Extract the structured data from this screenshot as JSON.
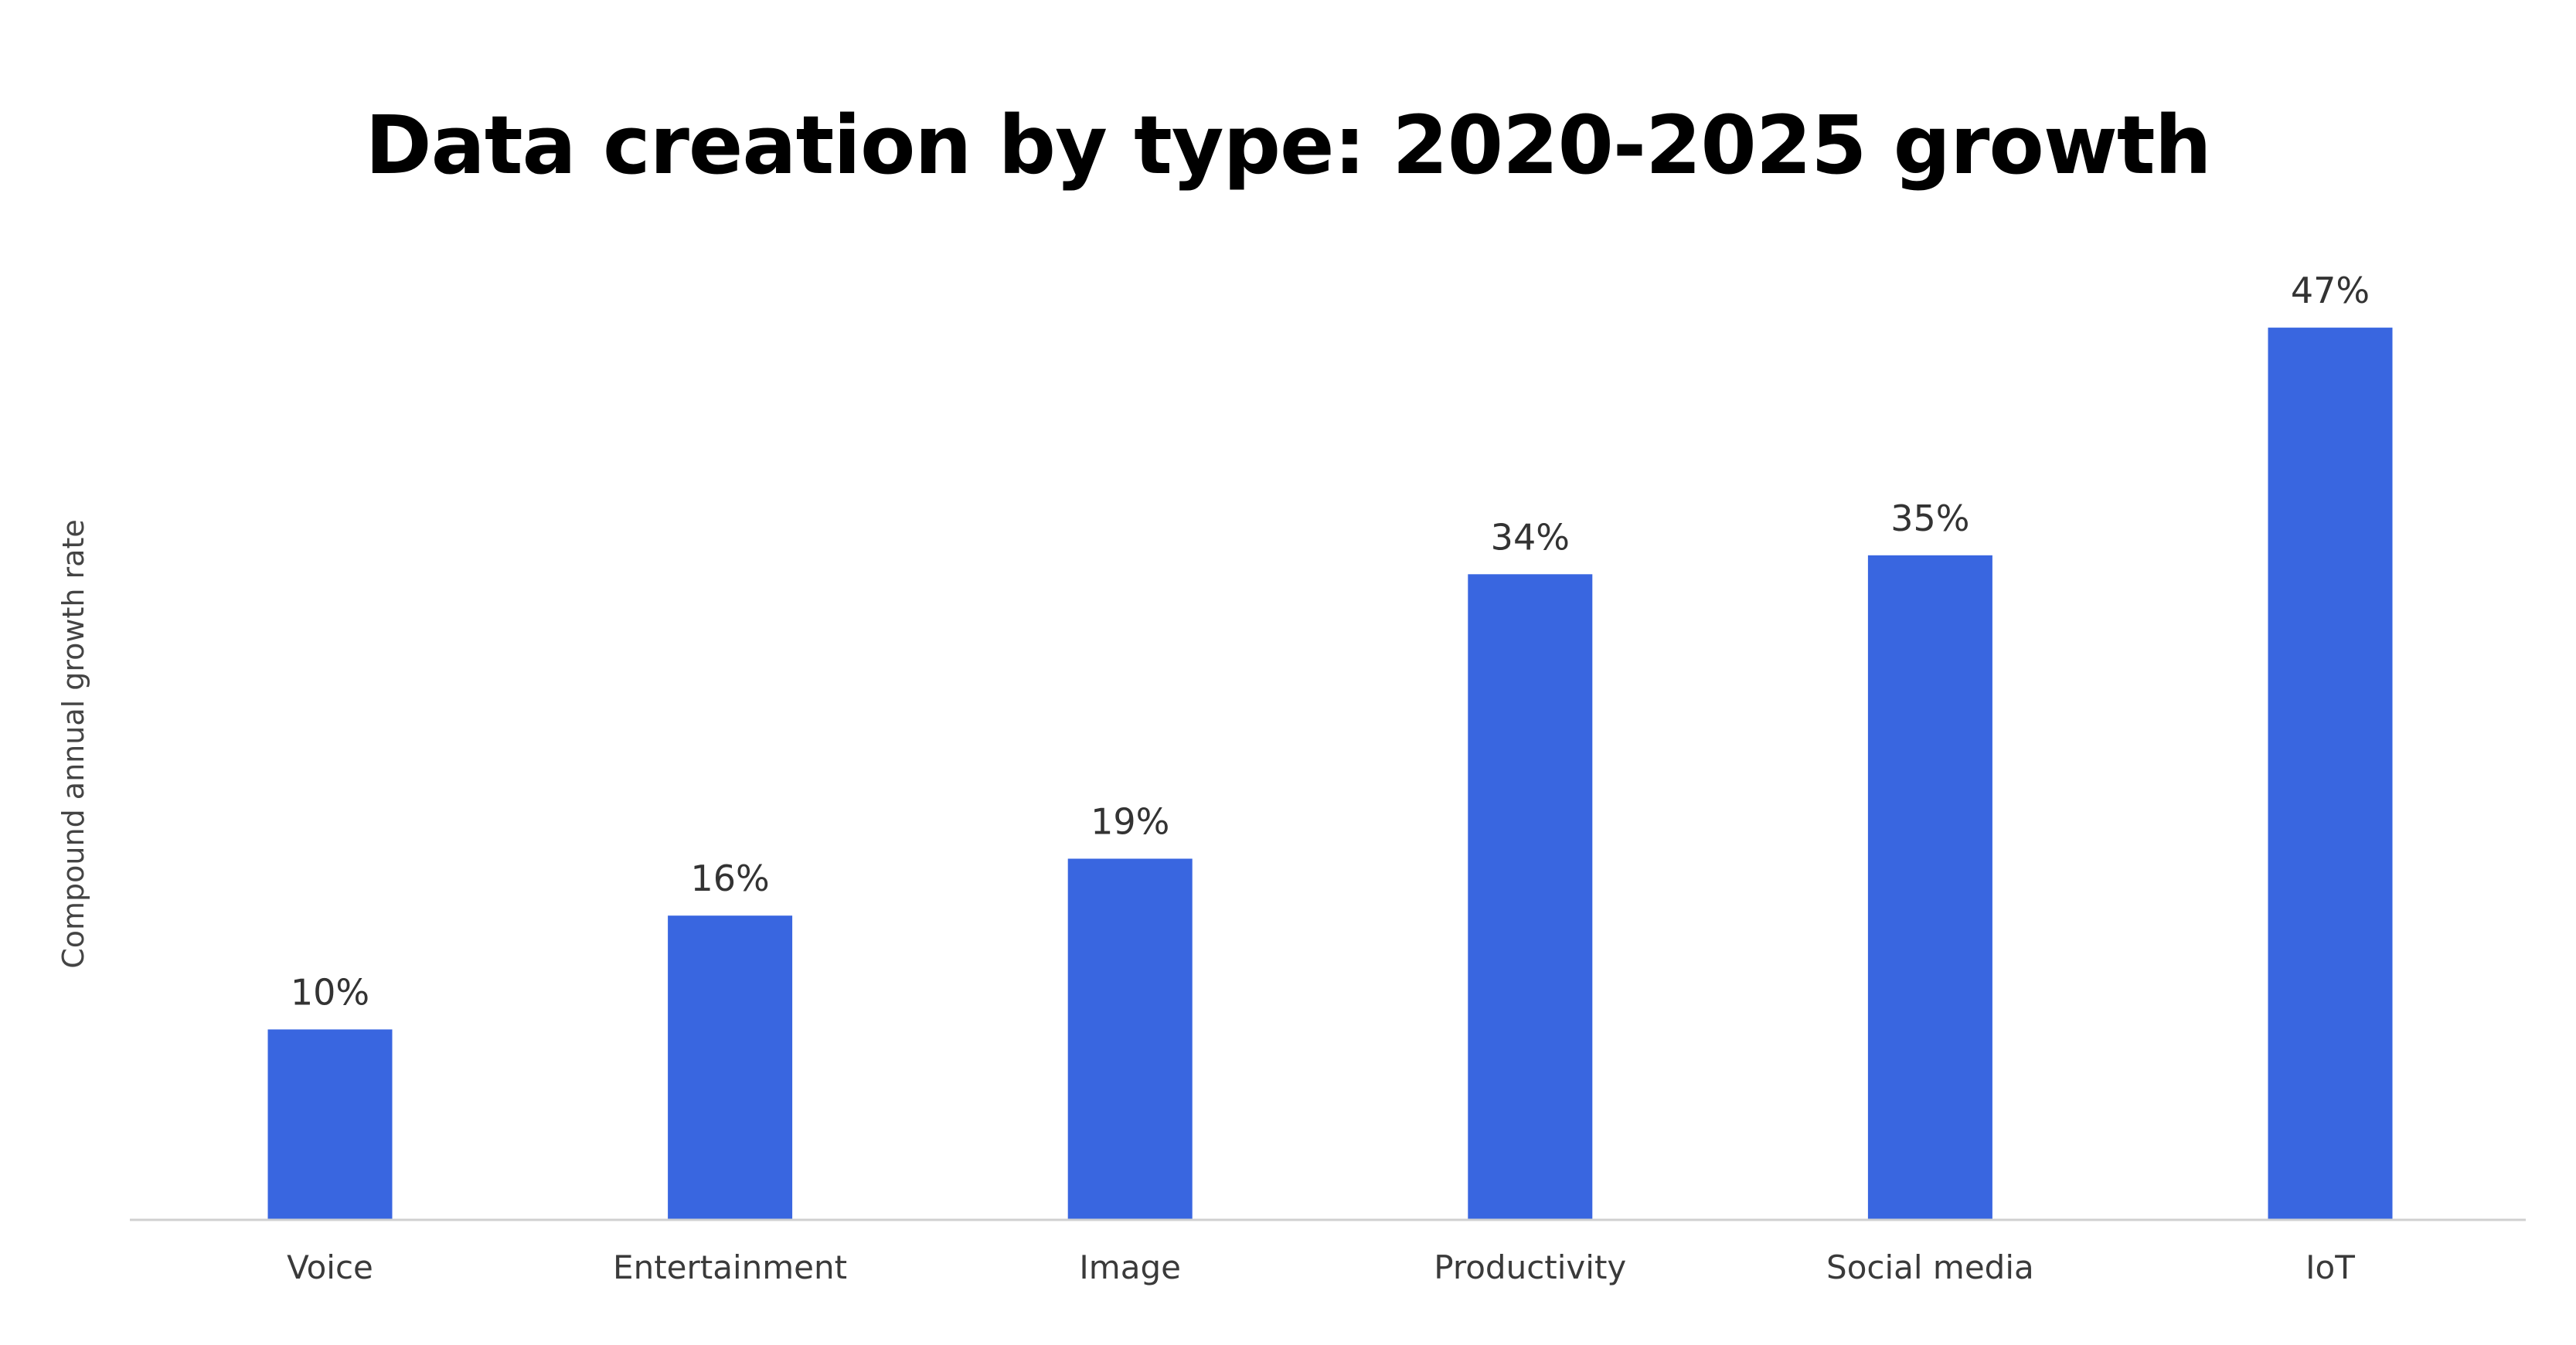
{
  "chart_data": {
    "type": "bar",
    "title": "Data creation by type: 2020-2025 growth",
    "xlabel": "",
    "ylabel": "Compound annual growth rate",
    "categories": [
      "Voice",
      "Entertainment",
      "Image",
      "Productivity",
      "Social media",
      "IoT"
    ],
    "values": [
      10,
      16,
      19,
      34,
      35,
      47
    ],
    "value_labels": [
      "10%",
      "16%",
      "19%",
      "34%",
      "35%",
      "47%"
    ],
    "ylim": [
      0,
      50
    ],
    "grid": false,
    "bar_color": "#3966e0",
    "axis_color": "#d0d0d0"
  }
}
